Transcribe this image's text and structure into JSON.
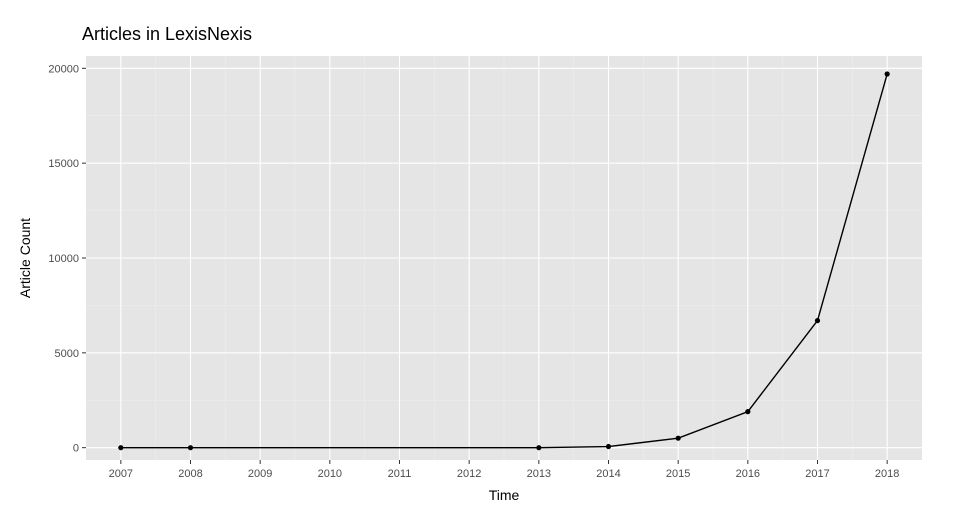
{
  "chart_data": {
    "type": "line",
    "title": "Articles in LexisNexis",
    "xlabel": "Time",
    "ylabel": "Article Count",
    "x_ticks": [
      "2007",
      "2008",
      "2009",
      "2010",
      "2011",
      "2012",
      "2013",
      "2014",
      "2015",
      "2016",
      "2017",
      "2018"
    ],
    "y_ticks": [
      0,
      5000,
      10000,
      15000,
      20000
    ],
    "xlim": [
      2006.5,
      2018.5
    ],
    "ylim": [
      -650,
      20650
    ],
    "grid": true,
    "legend": "none",
    "series": [
      {
        "points": [
          {
            "x": 2007,
            "y": 0
          },
          {
            "x": 2008,
            "y": 0
          },
          {
            "x": 2013,
            "y": 0
          },
          {
            "x": 2014,
            "y": 60
          },
          {
            "x": 2015,
            "y": 500
          },
          {
            "x": 2016,
            "y": 1900
          },
          {
            "x": 2017,
            "y": 6700
          },
          {
            "x": 2018,
            "y": 19700
          }
        ]
      }
    ],
    "colors": {
      "panel": "#e5e5e5",
      "grid_major": "#ffffff",
      "line": "#000000"
    }
  }
}
